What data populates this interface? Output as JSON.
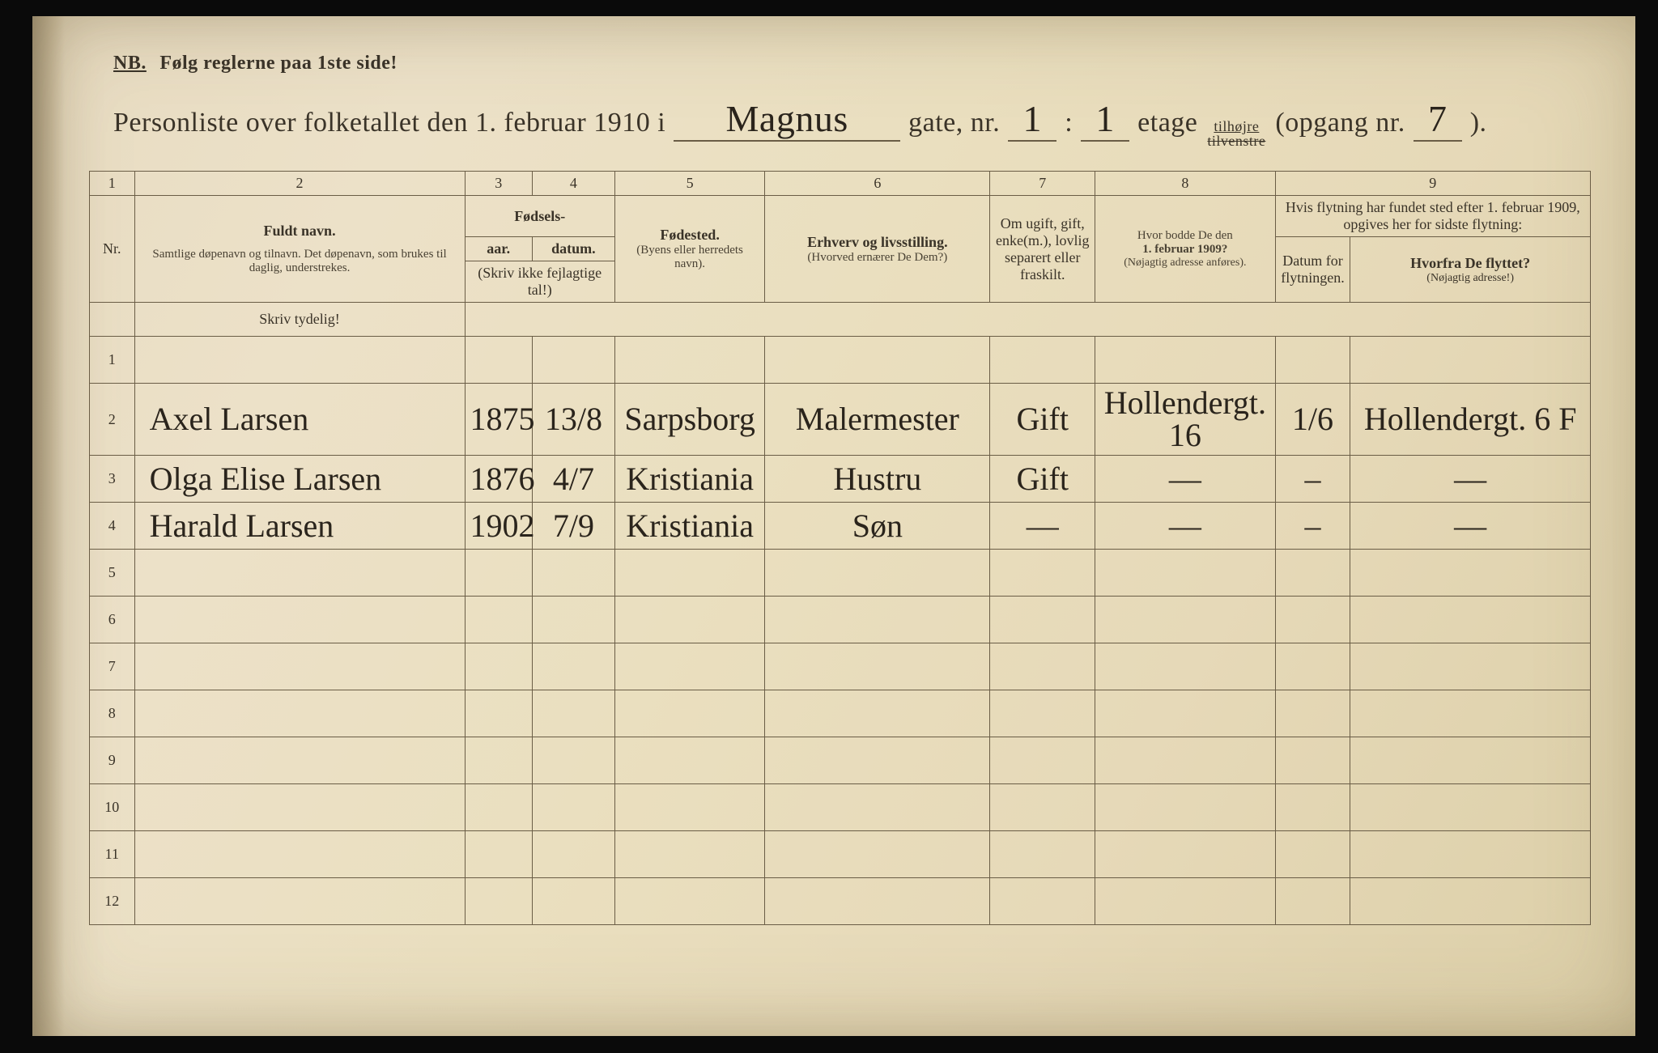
{
  "header": {
    "nb": "NB.",
    "nb_text": "Følg reglerne paa 1ste side!",
    "title_pre": "Personliste over folketallet den 1. februar 1910 i",
    "street": "Magnus",
    "gate": "gate, nr.",
    "house_nr": "1",
    "colon": ":",
    "floor": "1",
    "etage": "etage",
    "side_top": "tilhøjre",
    "side_bot": "tilvenstre",
    "opgang_pre": "(opgang nr.",
    "opgang_nr": "7",
    "opgang_post": ")."
  },
  "colnums": [
    "1",
    "2",
    "3",
    "4",
    "5",
    "6",
    "7",
    "8",
    "9"
  ],
  "headers": {
    "name_main": "Fuldt navn.",
    "name_sub": "Samtlige døpenavn og tilnavn. Det døpenavn, som brukes til daglig, understrekes.",
    "birth_group": "Fødsels-",
    "year": "aar.",
    "date": "datum.",
    "year_note": "(Skriv ikke fejlagtige tal!)",
    "place": "Fødested.",
    "place_sub": "(Byens eller herredets navn).",
    "occ": "Erhverv og livsstilling.",
    "occ_sub": "(Hvorved ernærer De Dem?)",
    "civil": "Om ugift, gift, enke(m.), lovlig separert eller fraskilt.",
    "addr1909_a": "Hvor bodde De den",
    "addr1909_b": "1. februar 1909?",
    "addr1909_sub": "(Nøjagtig adresse anføres).",
    "move_intro": "Hvis flytning har fundet sted efter 1. februar 1909, opgives her for sidste flytning:",
    "move_date": "Datum for flytningen.",
    "move_from": "Hvorfra De flyttet?",
    "move_from_sub": "(Nøjagtig adresse!)",
    "skriv": "Skriv tydelig!",
    "nr": "Nr."
  },
  "rows": [
    {
      "n": "1",
      "name": "",
      "year": "",
      "date": "",
      "place": "",
      "occ": "",
      "civ": "",
      "addr": "",
      "mdate": "",
      "mfrom": ""
    },
    {
      "n": "2",
      "name": "Axel Larsen",
      "year": "1875",
      "date": "13/8",
      "place": "Sarpsborg",
      "occ": "Malermester",
      "civ": "Gift",
      "addr": "Hollendergt. 16",
      "mdate": "1/6",
      "mfrom": "Hollendergt. 6 F"
    },
    {
      "n": "3",
      "name": "Olga Elise Larsen",
      "year": "1876",
      "date": "4/7",
      "place": "Kristiania",
      "occ": "Hustru",
      "civ": "Gift",
      "addr": "—",
      "mdate": "–",
      "mfrom": "—"
    },
    {
      "n": "4",
      "name": "Harald Larsen",
      "year": "1902",
      "date": "7/9",
      "place": "Kristiania",
      "occ": "Søn",
      "civ": "—",
      "addr": "—",
      "mdate": "–",
      "mfrom": "—"
    },
    {
      "n": "5",
      "name": "",
      "year": "",
      "date": "",
      "place": "",
      "occ": "",
      "civ": "",
      "addr": "",
      "mdate": "",
      "mfrom": ""
    },
    {
      "n": "6",
      "name": "",
      "year": "",
      "date": "",
      "place": "",
      "occ": "",
      "civ": "",
      "addr": "",
      "mdate": "",
      "mfrom": ""
    },
    {
      "n": "7",
      "name": "",
      "year": "",
      "date": "",
      "place": "",
      "occ": "",
      "civ": "",
      "addr": "",
      "mdate": "",
      "mfrom": ""
    },
    {
      "n": "8",
      "name": "",
      "year": "",
      "date": "",
      "place": "",
      "occ": "",
      "civ": "",
      "addr": "",
      "mdate": "",
      "mfrom": ""
    },
    {
      "n": "9",
      "name": "",
      "year": "",
      "date": "",
      "place": "",
      "occ": "",
      "civ": "",
      "addr": "",
      "mdate": "",
      "mfrom": ""
    },
    {
      "n": "10",
      "name": "",
      "year": "",
      "date": "",
      "place": "",
      "occ": "",
      "civ": "",
      "addr": "",
      "mdate": "",
      "mfrom": ""
    },
    {
      "n": "11",
      "name": "",
      "year": "",
      "date": "",
      "place": "",
      "occ": "",
      "civ": "",
      "addr": "",
      "mdate": "",
      "mfrom": ""
    },
    {
      "n": "12",
      "name": "",
      "year": "",
      "date": "",
      "place": "",
      "occ": "",
      "civ": "",
      "addr": "",
      "mdate": "",
      "mfrom": ""
    }
  ],
  "style": {
    "paper_bg": "#eadfbf",
    "ink": "#3a3328",
    "rule": "#6a5d46",
    "hand_ink": "#2a241c",
    "title_fontsize_pt": 26,
    "header_fontsize_pt": 14,
    "hand_fontsize_pt": 30
  }
}
